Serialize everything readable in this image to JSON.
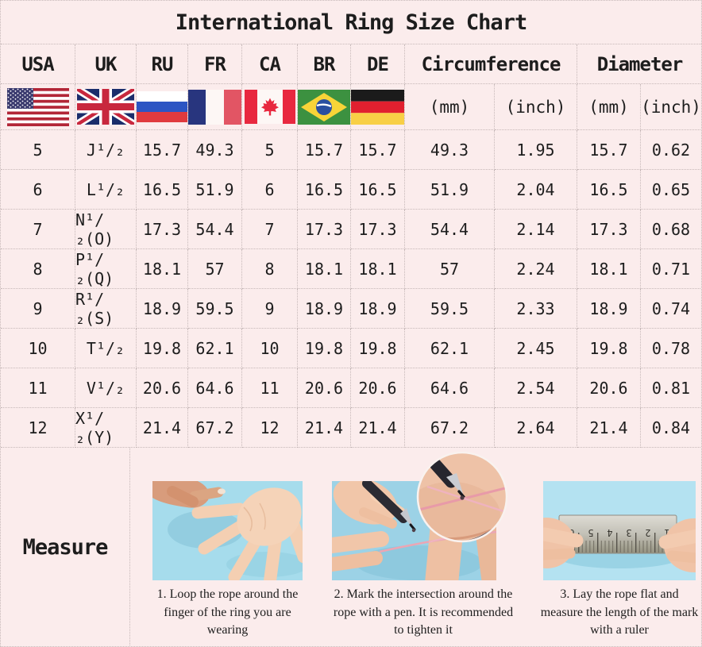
{
  "title": "International Ring Size Chart",
  "colors": {
    "background": "#fbecec",
    "grid_border": "#c6b8b8",
    "text": "#1d1d1d",
    "photo_blue_1": "#a6dcec",
    "photo_blue_2": "#9cd2e6",
    "photo_blue_3": "#b4e2f1",
    "rope_pink": "#eba6b4"
  },
  "table": {
    "country_headers": [
      "USA",
      "UK",
      "RU",
      "FR",
      "CA",
      "BR",
      "DE"
    ],
    "group_headers": {
      "circumference": "Circumference",
      "diameter": "Diameter"
    },
    "unit_headers": {
      "circ_mm": "(mm)",
      "circ_inch": "(inch)",
      "dia_mm": "(mm)",
      "dia_inch": "(inch)"
    },
    "flags": [
      "usa-flag",
      "uk-flag",
      "russia-flag",
      "france-flag",
      "canada-flag",
      "brazil-flag",
      "germany-flag"
    ],
    "row_keys": [
      "usa",
      "uk",
      "ru",
      "fr",
      "ca",
      "br",
      "de",
      "circ_mm",
      "circ_inch",
      "dia_mm",
      "dia_inch"
    ],
    "rows": [
      {
        "usa": "5",
        "uk": "J¹/₂",
        "ru": "15.7",
        "fr": "49.3",
        "ca": "5",
        "br": "15.7",
        "de": "15.7",
        "circ_mm": "49.3",
        "circ_inch": "1.95",
        "dia_mm": "15.7",
        "dia_inch": "0.62"
      },
      {
        "usa": "6",
        "uk": "L¹/₂",
        "ru": "16.5",
        "fr": "51.9",
        "ca": "6",
        "br": "16.5",
        "de": "16.5",
        "circ_mm": "51.9",
        "circ_inch": "2.04",
        "dia_mm": "16.5",
        "dia_inch": "0.65"
      },
      {
        "usa": "7",
        "uk": "N¹/₂(O)",
        "ru": "17.3",
        "fr": "54.4",
        "ca": "7",
        "br": "17.3",
        "de": "17.3",
        "circ_mm": "54.4",
        "circ_inch": "2.14",
        "dia_mm": "17.3",
        "dia_inch": "0.68"
      },
      {
        "usa": "8",
        "uk": "P¹/₂(Q)",
        "ru": "18.1",
        "fr": "57",
        "ca": "8",
        "br": "18.1",
        "de": "18.1",
        "circ_mm": "57",
        "circ_inch": "2.24",
        "dia_mm": "18.1",
        "dia_inch": "0.71"
      },
      {
        "usa": "9",
        "uk": "R¹/₂(S)",
        "ru": "18.9",
        "fr": "59.5",
        "ca": "9",
        "br": "18.9",
        "de": "18.9",
        "circ_mm": "59.5",
        "circ_inch": "2.33",
        "dia_mm": "18.9",
        "dia_inch": "0.74"
      },
      {
        "usa": "10",
        "uk": "T¹/₂",
        "ru": "19.8",
        "fr": "62.1",
        "ca": "10",
        "br": "19.8",
        "de": "19.8",
        "circ_mm": "62.1",
        "circ_inch": "2.45",
        "dia_mm": "19.8",
        "dia_inch": "0.78"
      },
      {
        "usa": "11",
        "uk": "V¹/₂",
        "ru": "20.6",
        "fr": "64.6",
        "ca": "11",
        "br": "20.6",
        "de": "20.6",
        "circ_mm": "64.6",
        "circ_inch": "2.54",
        "dia_mm": "20.6",
        "dia_inch": "0.81"
      },
      {
        "usa": "12",
        "uk": "X¹/₂(Y)",
        "ru": "21.4",
        "fr": "67.2",
        "ca": "12",
        "br": "21.4",
        "de": "21.4",
        "circ_mm": "67.2",
        "circ_inch": "2.64",
        "dia_mm": "21.4",
        "dia_inch": "0.84"
      }
    ]
  },
  "measure": {
    "label": "Measure",
    "ruler_digits": [
      "6",
      "5",
      "4",
      "3",
      "2",
      "1"
    ],
    "steps": [
      {
        "illustration": "hand-open-photo",
        "caption": "1. Loop the rope around the finger of the ring you are wearing"
      },
      {
        "illustration": "pen-marking-photo",
        "caption": "2. Mark the intersection around the rope with a pen. It is recommended to tighten it"
      },
      {
        "illustration": "ruler-measuring-photo",
        "caption": "3. Lay the rope flat and measure the length of the mark with a ruler"
      }
    ]
  },
  "chart_data": {
    "type": "table",
    "title": "International Ring Size Chart",
    "columns": [
      "USA",
      "UK",
      "RU",
      "FR",
      "CA",
      "BR",
      "DE",
      "Circumference (mm)",
      "Circumference (inch)",
      "Diameter (mm)",
      "Diameter (inch)"
    ],
    "rows": [
      [
        "5",
        "J¹/₂",
        "15.7",
        "49.3",
        "5",
        "15.7",
        "15.7",
        "49.3",
        "1.95",
        "15.7",
        "0.62"
      ],
      [
        "6",
        "L¹/₂",
        "16.5",
        "51.9",
        "6",
        "16.5",
        "16.5",
        "51.9",
        "2.04",
        "16.5",
        "0.65"
      ],
      [
        "7",
        "N¹/₂(O)",
        "17.3",
        "54.4",
        "7",
        "17.3",
        "17.3",
        "54.4",
        "2.14",
        "17.3",
        "0.68"
      ],
      [
        "8",
        "P¹/₂(Q)",
        "18.1",
        "57",
        "8",
        "18.1",
        "18.1",
        "57",
        "2.24",
        "18.1",
        "0.71"
      ],
      [
        "9",
        "R¹/₂(S)",
        "18.9",
        "59.5",
        "9",
        "18.9",
        "18.9",
        "59.5",
        "2.33",
        "18.9",
        "0.74"
      ],
      [
        "10",
        "T¹/₂",
        "19.8",
        "62.1",
        "10",
        "19.8",
        "19.8",
        "62.1",
        "2.45",
        "19.8",
        "0.78"
      ],
      [
        "11",
        "V¹/₂",
        "20.6",
        "64.6",
        "11",
        "20.6",
        "20.6",
        "64.6",
        "2.54",
        "20.6",
        "0.81"
      ],
      [
        "12",
        "X¹/₂(Y)",
        "21.4",
        "67.2",
        "12",
        "21.4",
        "21.4",
        "67.2",
        "2.64",
        "21.4",
        "0.84"
      ]
    ]
  }
}
